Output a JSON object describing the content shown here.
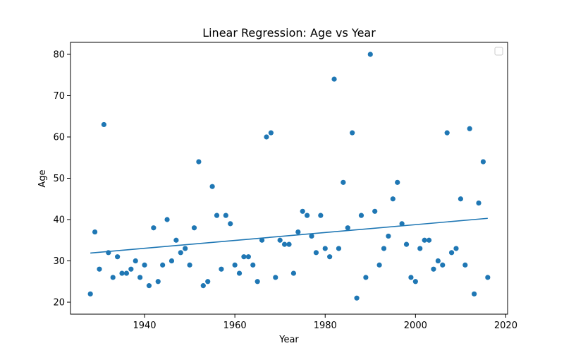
{
  "chart_data": {
    "type": "scatter",
    "title": "Linear Regression: Age vs Year",
    "xlabel": "Year",
    "ylabel": "Age",
    "xlim": [
      1923.6,
      2020.4
    ],
    "ylim": [
      17.1,
      82.9
    ],
    "xticks": [
      1940,
      1960,
      1980,
      2000,
      2020
    ],
    "yticks": [
      20,
      30,
      40,
      50,
      60,
      70,
      80
    ],
    "grid": false,
    "legend": "top-right (empty)",
    "colors": {
      "points": "#1f77b4",
      "line": "#1f77b4"
    },
    "points": [
      [
        1928,
        22
      ],
      [
        1929,
        37
      ],
      [
        1930,
        28
      ],
      [
        1931,
        63
      ],
      [
        1932,
        32
      ],
      [
        1933,
        26
      ],
      [
        1934,
        31
      ],
      [
        1935,
        27
      ],
      [
        1936,
        27
      ],
      [
        1937,
        28
      ],
      [
        1938,
        30
      ],
      [
        1939,
        26
      ],
      [
        1940,
        29
      ],
      [
        1941,
        24
      ],
      [
        1942,
        38
      ],
      [
        1943,
        25
      ],
      [
        1944,
        29
      ],
      [
        1945,
        40
      ],
      [
        1946,
        30
      ],
      [
        1947,
        35
      ],
      [
        1948,
        32
      ],
      [
        1949,
        33
      ],
      [
        1950,
        29
      ],
      [
        1951,
        38
      ],
      [
        1952,
        54
      ],
      [
        1953,
        24
      ],
      [
        1954,
        25
      ],
      [
        1955,
        48
      ],
      [
        1956,
        41
      ],
      [
        1957,
        28
      ],
      [
        1958,
        41
      ],
      [
        1959,
        39
      ],
      [
        1960,
        29
      ],
      [
        1961,
        27
      ],
      [
        1962,
        31
      ],
      [
        1963,
        31
      ],
      [
        1964,
        29
      ],
      [
        1965,
        25
      ],
      [
        1966,
        35
      ],
      [
        1967,
        60
      ],
      [
        1968,
        61
      ],
      [
        1969,
        26
      ],
      [
        1970,
        35
      ],
      [
        1971,
        34
      ],
      [
        1972,
        34
      ],
      [
        1973,
        27
      ],
      [
        1974,
        37
      ],
      [
        1975,
        42
      ],
      [
        1976,
        41
      ],
      [
        1977,
        36
      ],
      [
        1978,
        32
      ],
      [
        1979,
        41
      ],
      [
        1980,
        33
      ],
      [
        1981,
        31
      ],
      [
        1982,
        74
      ],
      [
        1983,
        33
      ],
      [
        1984,
        49
      ],
      [
        1985,
        38
      ],
      [
        1986,
        61
      ],
      [
        1987,
        21
      ],
      [
        1988,
        41
      ],
      [
        1989,
        26
      ],
      [
        1990,
        80
      ],
      [
        1991,
        42
      ],
      [
        1992,
        29
      ],
      [
        1993,
        33
      ],
      [
        1994,
        36
      ],
      [
        1995,
        45
      ],
      [
        1996,
        49
      ],
      [
        1997,
        39
      ],
      [
        1998,
        34
      ],
      [
        1999,
        26
      ],
      [
        2000,
        25
      ],
      [
        2001,
        33
      ],
      [
        2002,
        35
      ],
      [
        2003,
        35
      ],
      [
        2004,
        28
      ],
      [
        2005,
        30
      ],
      [
        2006,
        29
      ],
      [
        2007,
        61
      ],
      [
        2008,
        32
      ],
      [
        2009,
        33
      ],
      [
        2010,
        45
      ],
      [
        2011,
        29
      ],
      [
        2012,
        62
      ],
      [
        2013,
        22
      ],
      [
        2014,
        44
      ],
      [
        2015,
        54
      ],
      [
        2016,
        26
      ]
    ],
    "regression_line": {
      "x": [
        1928,
        2016
      ],
      "y": [
        31.9,
        40.3
      ]
    }
  }
}
